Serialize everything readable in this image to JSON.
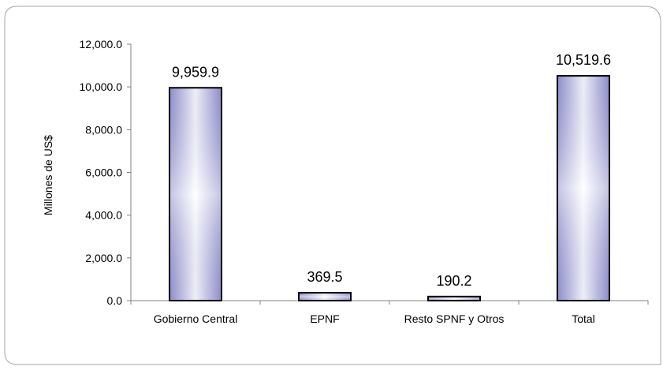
{
  "chart_data": {
    "type": "bar",
    "title": "",
    "xlabel": "",
    "ylabel": "Millones de US$",
    "categories": [
      "Gobierno Central",
      "EPNF",
      "Resto SPNF y Otros",
      "Total"
    ],
    "values": [
      9959.9,
      369.5,
      190.2,
      10519.6
    ],
    "value_labels": [
      "9,959.9",
      "369.5",
      "190.2",
      "10,519.6"
    ],
    "ylim": [
      0,
      12000
    ],
    "yticks": [
      0,
      2000,
      4000,
      6000,
      8000,
      10000,
      12000
    ],
    "ytick_labels": [
      "0.0",
      "2,000.0",
      "4,000.0",
      "6,000.0",
      "8,000.0",
      "10,000.0",
      "12,000.0"
    ],
    "grid": false,
    "legend": "none",
    "colors": {
      "bar_edge": "#000000",
      "bar_center": "#ffffff",
      "bar_side": "#8c8cc8",
      "frame": "#a6a6a6",
      "axis": "#808080"
    }
  }
}
